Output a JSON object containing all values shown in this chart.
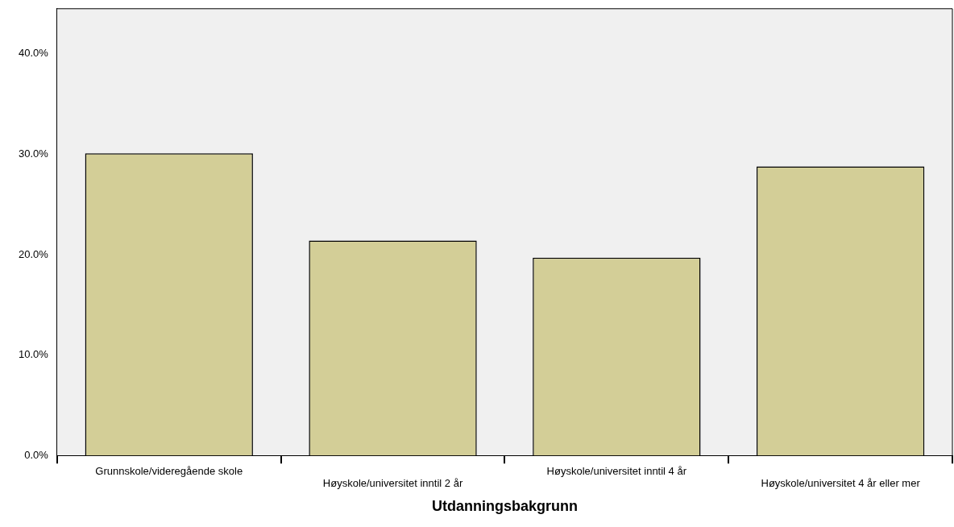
{
  "chart_data": {
    "type": "bar",
    "xlabel": "Utdanningsbakgrunn",
    "categories": [
      "Grunnskole/videregående skole",
      "Høyskole/universitet inntil 2 år",
      "Høyskole/universitet inntil 4 år",
      "Høyskole/universitet 4 år eller mer"
    ],
    "values": [
      30.1,
      21.4,
      19.7,
      28.8
    ],
    "color": "#d3ce97",
    "ylim": [
      0,
      44.5
    ],
    "yticks": [
      {
        "value": 0,
        "label": "0.0%"
      },
      {
        "value": 10,
        "label": "10.0%"
      },
      {
        "value": 20,
        "label": "20.0%"
      },
      {
        "value": 30,
        "label": "30.0%"
      },
      {
        "value": 40,
        "label": "40.0%"
      }
    ],
    "grid": false,
    "legend": false
  }
}
